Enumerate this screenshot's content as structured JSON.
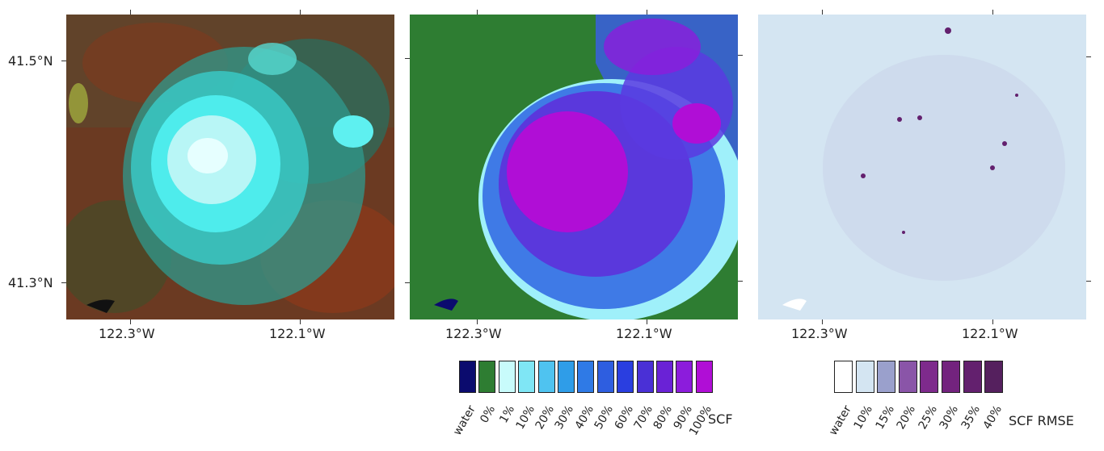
{
  "panels": {
    "rgb": {
      "name": "false-color-satellite-image"
    },
    "scf": {
      "name": "snow-cover-fraction-map"
    },
    "rmse": {
      "name": "scf-rmse-map"
    }
  },
  "axes": {
    "lat_labels": [
      "41.5°N",
      "41.3°N"
    ],
    "lon_labels": [
      "122.3°W",
      "122.1°W"
    ]
  },
  "legend_scf": {
    "title": "SCF",
    "items": [
      {
        "label": "water",
        "color": "#0b0b6e"
      },
      {
        "label": "0%",
        "color": "#2e7d32"
      },
      {
        "label": "1%",
        "color": "#c8fbfb"
      },
      {
        "label": "10%",
        "color": "#7fe6f5"
      },
      {
        "label": "20%",
        "color": "#4fc3f0"
      },
      {
        "label": "30%",
        "color": "#2f9de8"
      },
      {
        "label": "40%",
        "color": "#2f7ae6"
      },
      {
        "label": "50%",
        "color": "#2e5ee0"
      },
      {
        "label": "60%",
        "color": "#2a3ee0"
      },
      {
        "label": "70%",
        "color": "#4a30d6"
      },
      {
        "label": "80%",
        "color": "#6a22d6"
      },
      {
        "label": "90%",
        "color": "#8c1cdc"
      },
      {
        "label": "100%",
        "color": "#b00ed6"
      }
    ]
  },
  "legend_rmse": {
    "title": "SCF RMSE",
    "items": [
      {
        "label": "water",
        "color": "#ffffff"
      },
      {
        "label": "10%",
        "color": "#d4e5f2"
      },
      {
        "label": "15%",
        "color": "#9aa0cc"
      },
      {
        "label": "20%",
        "color": "#8a55a8"
      },
      {
        "label": "25%",
        "color": "#7e2a8c"
      },
      {
        "label": "30%",
        "color": "#73237e"
      },
      {
        "label": "35%",
        "color": "#63206e"
      },
      {
        "label": "40%",
        "color": "#55205e"
      }
    ]
  }
}
